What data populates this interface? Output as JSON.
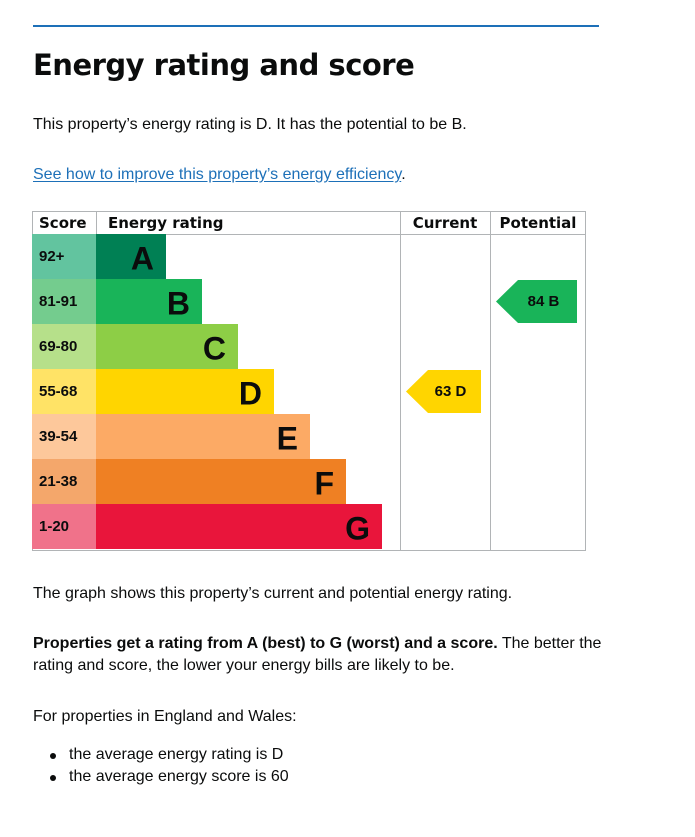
{
  "page": {
    "heading": "Energy rating and score",
    "intro": "This property’s energy rating is D. It has the potential to be B.",
    "link_text": "See how to improve this property’s energy efficiency",
    "link_suffix": ".",
    "graph_caption": "The graph shows this property’s current and potential energy rating.",
    "rating_bold": "Properties get a rating from A (best) to G (worst) and a score.",
    "rating_rest": " The better the rating and score, the lower your energy bills are likely to be.",
    "region_intro": "For properties in England and Wales:",
    "averages": [
      "the average energy rating is D",
      "the average energy score is 60"
    ]
  },
  "chart_data": {
    "type": "table",
    "headers": {
      "score": "Score",
      "rating": "Energy rating",
      "current": "Current",
      "potential": "Potential"
    },
    "bands": [
      {
        "letter": "A",
        "range": "92+",
        "color": "#008054",
        "score_bg": "#62c49f"
      },
      {
        "letter": "B",
        "range": "81-91",
        "color": "#19b459",
        "score_bg": "#74cc8e"
      },
      {
        "letter": "C",
        "range": "69-80",
        "color": "#8dce46",
        "score_bg": "#b6e08a"
      },
      {
        "letter": "D",
        "range": "55-68",
        "color": "#ffd500",
        "score_bg": "#ffe366"
      },
      {
        "letter": "E",
        "range": "39-54",
        "color": "#fcaa65",
        "score_bg": "#fdc89b"
      },
      {
        "letter": "F",
        "range": "21-38",
        "color": "#ef8023",
        "score_bg": "#f4a76b"
      },
      {
        "letter": "G",
        "range": "1-20",
        "color": "#e9153b",
        "score_bg": "#f0728a"
      }
    ],
    "current": {
      "score": 63,
      "band": "D",
      "label": "63 D",
      "color": "#ffd500"
    },
    "potential": {
      "score": 84,
      "band": "B",
      "label": "84 B",
      "color": "#19b459"
    }
  }
}
